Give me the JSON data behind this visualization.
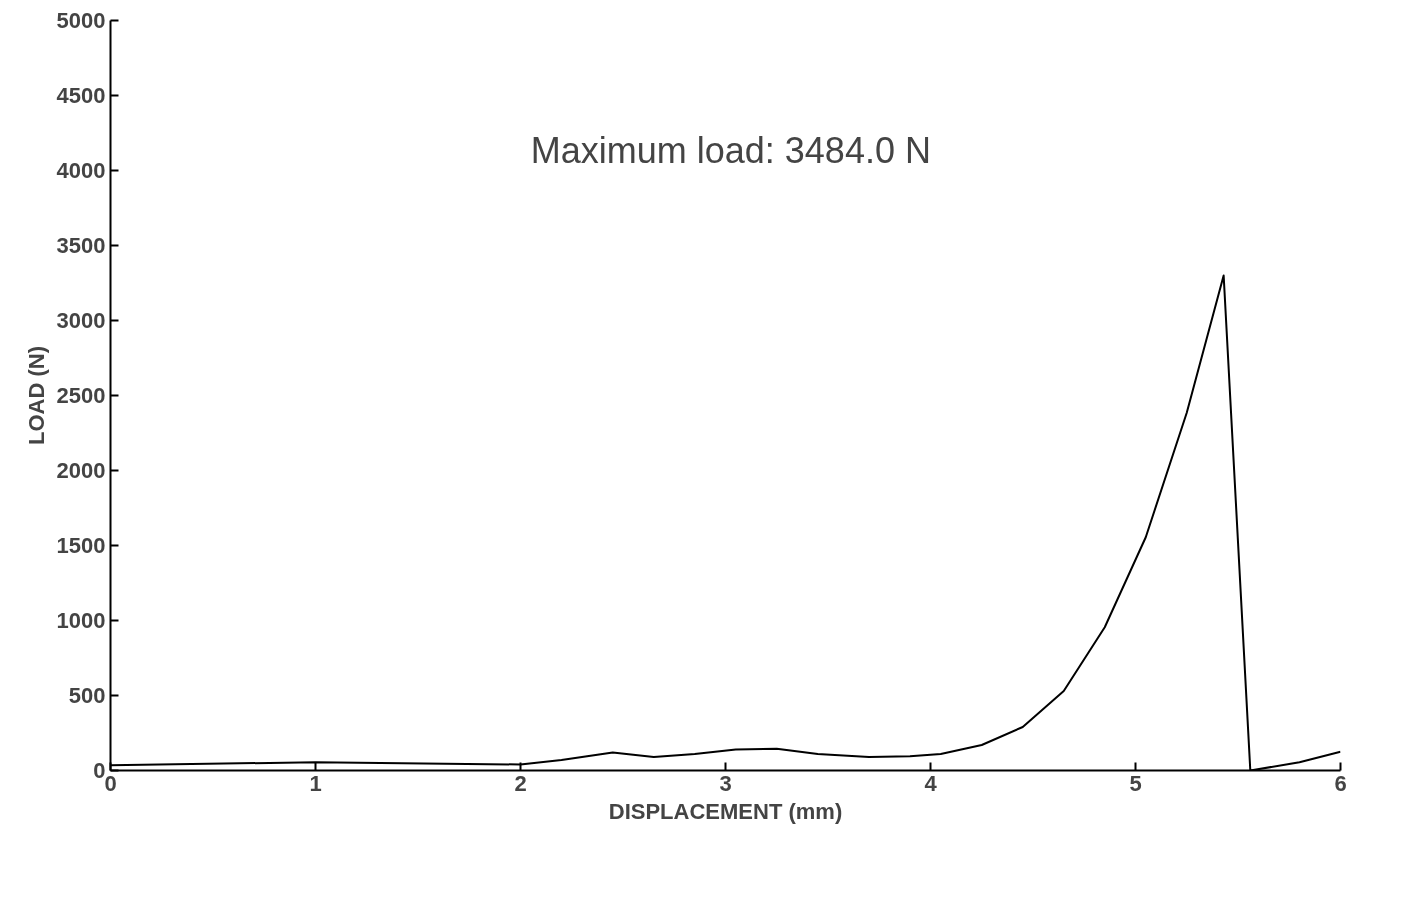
{
  "chart_data": {
    "type": "line",
    "xlabel": "DISPLACEMENT (mm)",
    "ylabel": "LOAD (N)",
    "annotations": [
      "Maximum load: 3484.0 N"
    ],
    "xlim": [
      0,
      6
    ],
    "ylim": [
      0,
      5000
    ],
    "xticks": [
      0,
      1,
      2,
      3,
      4,
      5,
      6
    ],
    "yticks": [
      0,
      500,
      1000,
      1500,
      2000,
      2500,
      3000,
      3500,
      4000,
      4500,
      5000
    ],
    "grid": false,
    "marker": "none",
    "line_style": "solid",
    "series": [
      {
        "color": "#000000",
        "x": [
          0,
          1,
          2,
          2.2,
          2.45,
          2.65,
          2.85,
          3.05,
          3.25,
          3.45,
          3.7,
          3.9,
          4.05,
          4.25,
          4.45,
          4.65,
          4.85,
          5.05,
          5.25,
          5.43,
          5.56,
          5.8,
          6
        ],
        "values": [
          35,
          55,
          40,
          70,
          120,
          90,
          110,
          140,
          145,
          110,
          90,
          95,
          110,
          170,
          290,
          530,
          955,
          1555,
          2385,
          3300,
          0,
          55,
          125
        ]
      }
    ]
  }
}
